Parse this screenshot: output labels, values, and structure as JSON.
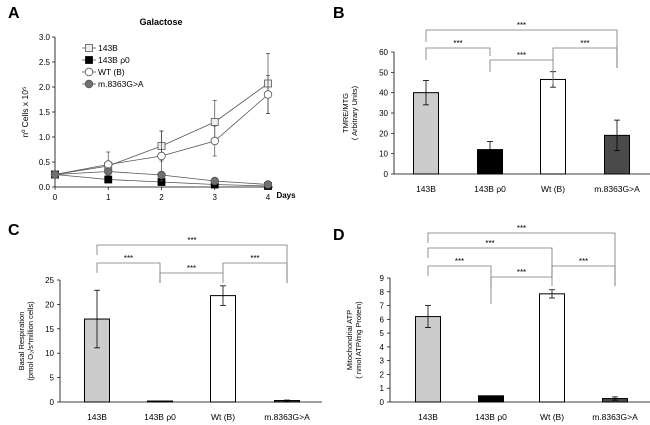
{
  "chart_data": [
    {
      "panel": "A",
      "type": "line",
      "title": "Galactose",
      "xlabel": "Days",
      "ylabel": "nº Cells x 10⁵",
      "x": [
        0,
        1,
        2,
        3,
        4
      ],
      "xlim": [
        0,
        4
      ],
      "ylim": [
        0,
        3.0
      ],
      "yticks": [
        "0.0",
        "0.5",
        "1.0",
        "1.5",
        "2.0",
        "2.5",
        "3.0"
      ],
      "xticks": [
        "0",
        "1",
        "2",
        "3",
        "4"
      ],
      "legend": "top-left",
      "series": [
        {
          "name": "143B",
          "values": [
            0.25,
            0.42,
            0.82,
            1.3,
            2.07
          ],
          "errors": [
            0,
            0.28,
            0.3,
            0.43,
            0.6
          ],
          "marker": "square-open",
          "color": "#c8c8c8"
        },
        {
          "name": "143B ρ0",
          "values": [
            0.25,
            0.15,
            0.1,
            0.05,
            0.02
          ],
          "errors": [
            0,
            0,
            0,
            0,
            0
          ],
          "marker": "square-filled",
          "color": "#000000"
        },
        {
          "name": "WT (B)",
          "values": [
            0.25,
            0.45,
            0.62,
            0.92,
            1.85
          ],
          "errors": [
            0,
            0.05,
            0.5,
            0.3,
            0.38
          ],
          "marker": "circle-open",
          "color": "#ffffff"
        },
        {
          "name": "m.8363G>A",
          "values": [
            0.25,
            0.31,
            0.24,
            0.12,
            0.05
          ],
          "errors": [
            0,
            0,
            0,
            0,
            0
          ],
          "marker": "circle-filled",
          "color": "#707070"
        }
      ]
    },
    {
      "panel": "B",
      "type": "bar",
      "ylabel": [
        "TMRE/MTG",
        "( Arbitrary Units)"
      ],
      "ylim": [
        0,
        60
      ],
      "yticks": [
        "0",
        "10",
        "20",
        "30",
        "40",
        "50",
        "60"
      ],
      "categories": [
        "143B",
        "143B ρ0",
        "Wt (B)",
        "m.8363G>A"
      ],
      "values": [
        40,
        12,
        46.5,
        19
      ],
      "errors": [
        6,
        4,
        3.8,
        7.5
      ],
      "colors": [
        "#cccccc",
        "#000000",
        "#ffffff",
        "#4a4a4a"
      ],
      "significance": [
        {
          "pair": [
            0,
            1
          ],
          "label": "***"
        },
        {
          "pair": [
            1,
            2
          ],
          "label": "***"
        },
        {
          "pair": [
            2,
            3
          ],
          "label": "***"
        },
        {
          "pair": [
            0,
            3
          ],
          "label": "***"
        }
      ]
    },
    {
      "panel": "C",
      "type": "bar",
      "ylabel": [
        "Basal Respiration",
        "(pmol O₂/s*million cells)"
      ],
      "ylim": [
        0,
        25
      ],
      "yticks": [
        "0",
        "5",
        "10",
        "15",
        "20",
        "25"
      ],
      "categories": [
        "143B",
        "143B ρ0",
        "Wt (B)",
        "m.8363G>A"
      ],
      "values": [
        17,
        0.2,
        21.8,
        0.3
      ],
      "errors": [
        5.9,
        0,
        2,
        0.1
      ],
      "colors": [
        "#cccccc",
        "#000000",
        "#ffffff",
        "#4a4a4a"
      ],
      "significance": [
        {
          "pair": [
            0,
            1
          ],
          "label": "***"
        },
        {
          "pair": [
            1,
            2
          ],
          "label": "***"
        },
        {
          "pair": [
            2,
            3
          ],
          "label": "***"
        },
        {
          "pair": [
            0,
            3
          ],
          "label": "***"
        }
      ]
    },
    {
      "panel": "D",
      "type": "bar",
      "ylabel": [
        "Mitochondrial ATP",
        "( nmol ATP/mg Protein)"
      ],
      "ylim": [
        0,
        9
      ],
      "yticks": [
        "0",
        "1",
        "2",
        "3",
        "4",
        "5",
        "6",
        "7",
        "8",
        "9"
      ],
      "categories": [
        "143B",
        "143B ρ0",
        "Wt (B)",
        "m.8363G>A"
      ],
      "values": [
        6.2,
        0.45,
        7.85,
        0.25
      ],
      "errors": [
        0.8,
        0,
        0.3,
        0.12
      ],
      "colors": [
        "#cccccc",
        "#000000",
        "#ffffff",
        "#4a4a4a"
      ],
      "significance": [
        {
          "pair": [
            0,
            1
          ],
          "label": "***"
        },
        {
          "pair": [
            1,
            2
          ],
          "label": "***"
        },
        {
          "pair": [
            2,
            3
          ],
          "label": "***"
        },
        {
          "pair": [
            0,
            2
          ],
          "label": "***"
        },
        {
          "pair": [
            0,
            3
          ],
          "label": "***"
        }
      ]
    }
  ]
}
